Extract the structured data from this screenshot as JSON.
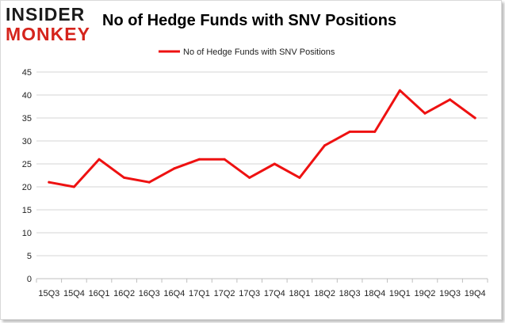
{
  "branding": {
    "logo_line1": "INSIDER",
    "logo_line2": "MONKEY"
  },
  "colors": {
    "series": "#ee1111",
    "logo_red": "#d5241c",
    "grid": "#d6d6d6"
  },
  "chart_data": {
    "type": "line",
    "title": "No of Hedge Funds with SNV Positions",
    "xlabel": "",
    "ylabel": "",
    "categories": [
      "15Q3",
      "15Q4",
      "16Q1",
      "16Q2",
      "16Q3",
      "16Q4",
      "17Q1",
      "17Q2",
      "17Q3",
      "17Q4",
      "18Q1",
      "18Q2",
      "18Q3",
      "18Q4",
      "19Q1",
      "19Q2",
      "19Q3",
      "19Q4"
    ],
    "series": [
      {
        "name": "No of Hedge Funds with SNV Positions",
        "values": [
          21,
          20,
          26,
          22,
          21,
          24,
          26,
          26,
          22,
          25,
          22,
          29,
          32,
          32,
          41,
          36,
          39,
          35
        ]
      }
    ],
    "ylim": [
      0,
      45
    ],
    "yticks": [
      0,
      5,
      10,
      15,
      20,
      25,
      30,
      35,
      40,
      45
    ],
    "grid": true,
    "legend_position": "top"
  }
}
